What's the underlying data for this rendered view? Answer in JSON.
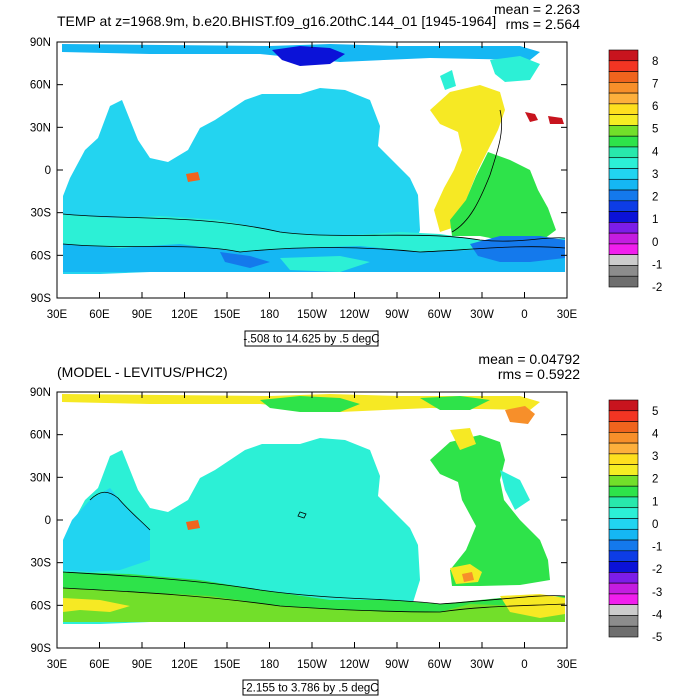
{
  "chart_data": [
    {
      "type": "heatmap",
      "title": "TEMP at z=1968.9m, b.e20.BHIST.f09_g16.20thC.144_01 [1945-1964]",
      "stats": {
        "mean": "mean = 2.263",
        "rms": "rms = 2.564"
      },
      "x_ticks": [
        "30E",
        "60E",
        "90E",
        "120E",
        "150E",
        "180",
        "150W",
        "120W",
        "90W",
        "60W",
        "30W",
        "0",
        "30E"
      ],
      "y_ticks": [
        "90N",
        "60N",
        "30N",
        "0",
        "30S",
        "60S",
        "90S"
      ],
      "range_label": "-.508 to 14.625 by .5 degC",
      "colorbar": {
        "labels": [
          "8",
          "7",
          "6",
          "5",
          "4",
          "3",
          "2",
          "1",
          "0",
          "-1",
          "-2"
        ],
        "colors": [
          "#c8141e",
          "#f23523",
          "#f0641d",
          "#f78f2a",
          "#fdaf3c",
          "#fedf1f",
          "#f5ed23",
          "#72df2a",
          "#2ee34a",
          "#28e8ac",
          "#2cf0d6",
          "#21d4f1",
          "#15b7f3",
          "#1479ec",
          "#0d3de6",
          "#0b12d8",
          "#7d1de8",
          "#c41de0",
          "#f11eed",
          "#cccccc",
          "#8c8c8c",
          "#6e6e6e"
        ]
      }
    },
    {
      "type": "heatmap",
      "title": "(MODEL - LEVITUS/PHC2)",
      "stats": {
        "mean": "mean = 0.04792",
        "rms": "rms = 0.5922"
      },
      "x_ticks": [
        "30E",
        "60E",
        "90E",
        "120E",
        "150E",
        "180",
        "150W",
        "120W",
        "90W",
        "60W",
        "30W",
        "0",
        "30E"
      ],
      "y_ticks": [
        "90N",
        "60N",
        "30N",
        "0",
        "30S",
        "60S",
        "90S"
      ],
      "range_label": "-2.155 to 3.786 by .5 degC",
      "colorbar": {
        "labels": [
          "5",
          "4",
          "3",
          "2",
          "1",
          "0",
          "-1",
          "-2",
          "-3",
          "-4",
          "-5"
        ],
        "colors": [
          "#c8141e",
          "#f23523",
          "#f0641d",
          "#f78f2a",
          "#fdaf3c",
          "#fedf1f",
          "#f5ed23",
          "#72df2a",
          "#2ee34a",
          "#28e8ac",
          "#2cf0d6",
          "#21d4f1",
          "#15b7f3",
          "#1479ec",
          "#0d3de6",
          "#0b12d8",
          "#7d1de8",
          "#c41de0",
          "#f11eed",
          "#cccccc",
          "#8c8c8c",
          "#6e6e6e"
        ]
      }
    }
  ]
}
